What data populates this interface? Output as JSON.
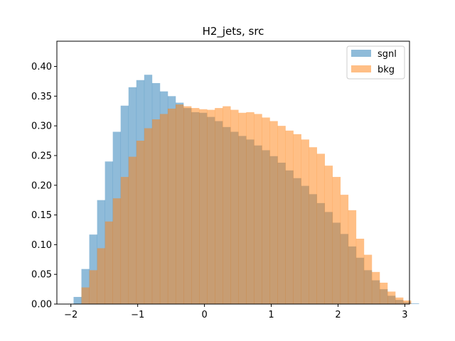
{
  "chart_data": {
    "type": "histogram",
    "title": "H2_jets, src",
    "xlabel": "",
    "ylabel": "",
    "xlim": [
      -2.21,
      3.07
    ],
    "ylim": [
      0,
      0.4425
    ],
    "x_ticks": [
      -2,
      -1,
      0,
      1,
      2,
      3
    ],
    "x_tick_labels": [
      "−2",
      "−1",
      "0",
      "1",
      "2",
      "3"
    ],
    "y_ticks": [
      0.0,
      0.05,
      0.1,
      0.15,
      0.2,
      0.25,
      0.3,
      0.35,
      0.4
    ],
    "y_tick_labels": [
      "0.00",
      "0.05",
      "0.10",
      "0.15",
      "0.20",
      "0.25",
      "0.30",
      "0.35",
      "0.40"
    ],
    "grid": false,
    "legend_position": "top-right",
    "bin_start": -1.96,
    "bin_width": 0.1175,
    "series": [
      {
        "name": "sgnl",
        "color": "#1f77b4",
        "alpha": 0.5,
        "values": [
          0.012,
          0.059,
          0.117,
          0.175,
          0.24,
          0.29,
          0.334,
          0.365,
          0.377,
          0.386,
          0.372,
          0.358,
          0.35,
          0.339,
          0.33,
          0.323,
          0.322,
          0.315,
          0.308,
          0.298,
          0.29,
          0.283,
          0.277,
          0.267,
          0.259,
          0.249,
          0.238,
          0.225,
          0.212,
          0.199,
          0.185,
          0.17,
          0.155,
          0.137,
          0.118,
          0.097,
          0.078,
          0.057,
          0.04,
          0.025,
          0.014,
          0.007,
          0.003,
          0.001
        ]
      },
      {
        "name": "bkg",
        "color": "#ff7f0e",
        "alpha": 0.5,
        "values": [
          0.0,
          0.028,
          0.057,
          0.094,
          0.139,
          0.178,
          0.214,
          0.248,
          0.275,
          0.296,
          0.311,
          0.32,
          0.329,
          0.336,
          0.333,
          0.33,
          0.328,
          0.327,
          0.33,
          0.333,
          0.327,
          0.322,
          0.323,
          0.32,
          0.314,
          0.308,
          0.3,
          0.292,
          0.286,
          0.277,
          0.264,
          0.253,
          0.233,
          0.214,
          0.184,
          0.158,
          0.11,
          0.083,
          0.054,
          0.036,
          0.021,
          0.011,
          0.006,
          0.0
        ]
      }
    ]
  }
}
